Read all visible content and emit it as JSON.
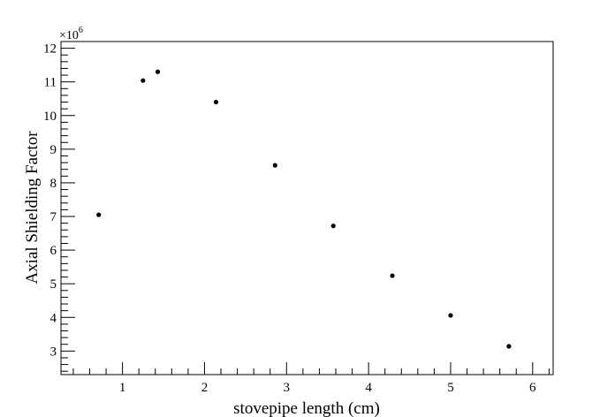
{
  "chart_data": {
    "type": "scatter",
    "title": "",
    "xlabel": "stovepipe length (cm)",
    "ylabel": "Axial Shielding Factor",
    "y_multiplier": {
      "base": "×10",
      "exponent": "6"
    },
    "xlim": [
      0.25,
      6.25
    ],
    "ylim": [
      2.3,
      12.2
    ],
    "x_major_ticks": [
      1,
      2,
      3,
      4,
      5,
      6
    ],
    "y_major_ticks": [
      3,
      4,
      5,
      6,
      7,
      8,
      9,
      10,
      11,
      12
    ],
    "x_tick_labels": [
      "1",
      "2",
      "3",
      "4",
      "5",
      "6"
    ],
    "y_tick_labels": [
      "3",
      "4",
      "5",
      "6",
      "7",
      "8",
      "9",
      "10",
      "11",
      "12"
    ],
    "grid": false,
    "marker_color": "#000000",
    "points": [
      {
        "x": 0.71,
        "y": 7.05
      },
      {
        "x": 1.25,
        "y": 11.04
      },
      {
        "x": 1.43,
        "y": 11.3
      },
      {
        "x": 2.14,
        "y": 10.4
      },
      {
        "x": 2.86,
        "y": 8.52
      },
      {
        "x": 3.57,
        "y": 6.72
      },
      {
        "x": 4.29,
        "y": 5.24
      },
      {
        "x": 5.0,
        "y": 4.06
      },
      {
        "x": 5.71,
        "y": 3.14
      }
    ]
  }
}
